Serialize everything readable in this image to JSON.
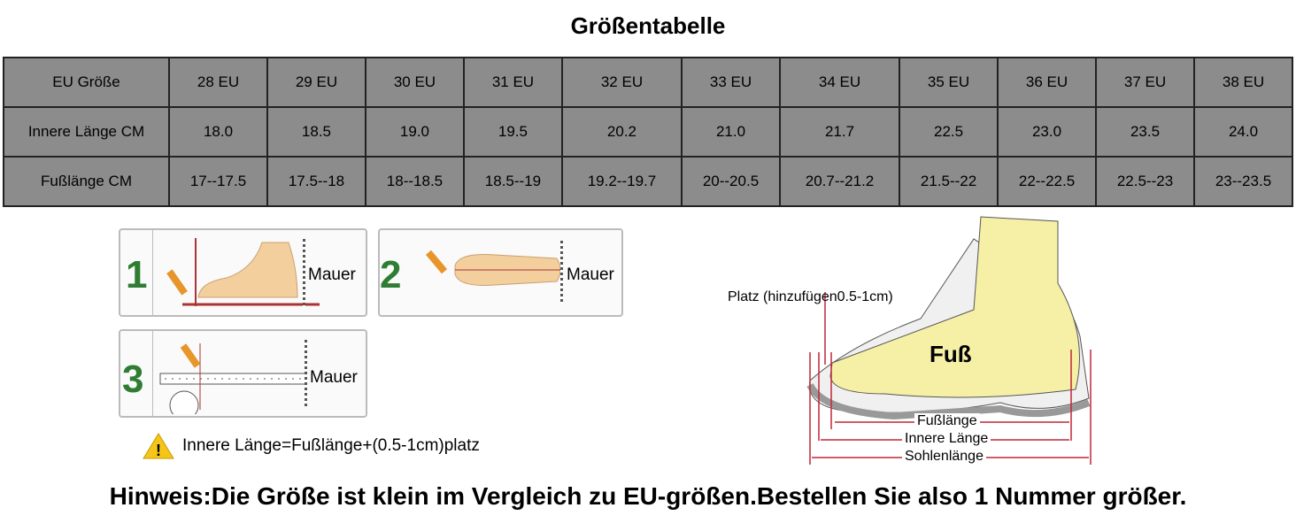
{
  "title": "Größentabelle",
  "table": {
    "rows": [
      {
        "label": "EU Größe",
        "values": [
          "28 EU",
          "29 EU",
          "30 EU",
          "31 EU",
          "32 EU",
          "33 EU",
          "34 EU",
          "35 EU",
          "36 EU",
          "37 EU",
          "38 EU"
        ]
      },
      {
        "label": "Innere Länge CM",
        "values": [
          "18.0",
          "18.5",
          "19.0",
          "19.5",
          "20.2",
          "21.0",
          "21.7",
          "22.5",
          "23.0",
          "23.5",
          "24.0"
        ]
      },
      {
        "label": "Fußlänge CM",
        "values": [
          "17--17.5",
          "17.5--18",
          "18--18.5",
          "18.5--19",
          "19.2--19.7",
          "20--20.5",
          "20.7--21.2",
          "21.5--22",
          "22--22.5",
          "22.5--23",
          "23--23.5"
        ]
      }
    ]
  },
  "steps": [
    {
      "number": "1",
      "wall": "Mauer"
    },
    {
      "number": "2",
      "wall": "Mauer"
    },
    {
      "number": "3",
      "wall": "Mauer"
    }
  ],
  "warning": "Innere Länge=Fußlänge+(0.5-1cm)platz",
  "diagram": {
    "space": "Platz (hinzufügen0.5-1cm)",
    "foot": "Fuß",
    "foot_length": "Fußlänge",
    "inner_length": "Innere Länge",
    "sole_length": "Sohlenlänge"
  },
  "note": "Hinweis:Die Größe ist klein im Vergleich zu EU-größen.Bestellen Sie also 1 Nummer größer."
}
